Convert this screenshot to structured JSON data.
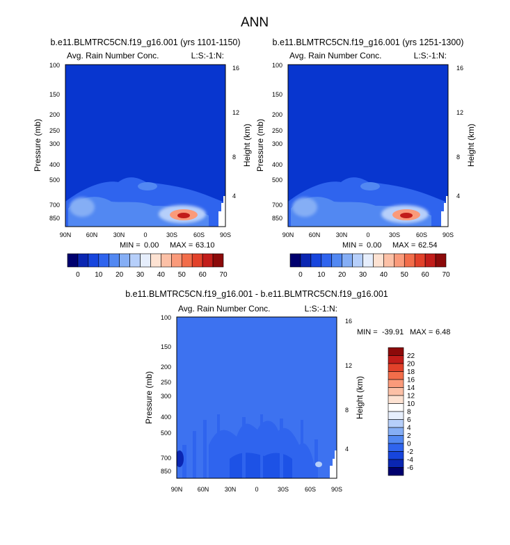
{
  "page_title": "ANN",
  "colors": {
    "field_background": "#0836cf",
    "diff_background": "#3d72f0"
  },
  "chart_data": [
    {
      "type": "heatmap",
      "title": "b.e11.BLMTRC5CN.f19_g16.001 (yrs 1101-1150)",
      "variable_label": "Avg. Rain Number Conc.",
      "corner_label": "L:S:-1:N:",
      "xlabel": "",
      "ylabel": "Pressure (mb)",
      "ylabel_right": "Height (km)",
      "x_ticks": [
        "90N",
        "60N",
        "30N",
        "0",
        "30S",
        "60S",
        "90S"
      ],
      "y_ticks": [
        "100",
        "150",
        "200",
        "250",
        "300",
        "400",
        "500",
        "700",
        "850"
      ],
      "y_right_ticks": [
        "16",
        "12",
        "8",
        "4"
      ],
      "y_scale": "log",
      "ylim": [
        1000,
        100
      ],
      "stats": {
        "min_label": "MIN =",
        "min": "0.00",
        "max_label": "MAX =",
        "max": "63.10"
      },
      "colorbar": {
        "orientation": "horizontal",
        "tick_labels": [
          "0",
          "10",
          "20",
          "30",
          "40",
          "50",
          "60",
          "70"
        ],
        "colors": [
          "#00006e",
          "#0a26b2",
          "#1745dd",
          "#2f64ee",
          "#5288f2",
          "#85aef5",
          "#b6cffa",
          "#e6eefc",
          "#fde2d2",
          "#fcc0a6",
          "#fa9a7a",
          "#f26d4a",
          "#e2412a",
          "#c21d1a",
          "#8c0a0a"
        ]
      },
      "features": [
        {
          "kind": "blob",
          "lat": 70,
          "p": 770,
          "level": 6
        },
        {
          "kind": "blob",
          "lat": 60,
          "p": 540,
          "level": 3
        },
        {
          "kind": "blob",
          "lat": -5,
          "p": 420,
          "level": 3
        },
        {
          "kind": "blob",
          "lat": -35,
          "p": 810,
          "level": 14
        }
      ]
    },
    {
      "type": "heatmap",
      "title": "b.e11.BLMTRC5CN.f19_g16.001 (yrs 1251-1300)",
      "variable_label": "Avg. Rain Number Conc.",
      "corner_label": "L:S:-1:N:",
      "xlabel": "",
      "ylabel": "Pressure (mb)",
      "ylabel_right": "Height (km)",
      "x_ticks": [
        "90N",
        "60N",
        "30N",
        "0",
        "30S",
        "60S",
        "90S"
      ],
      "y_ticks": [
        "100",
        "150",
        "200",
        "250",
        "300",
        "400",
        "500",
        "700",
        "850"
      ],
      "y_right_ticks": [
        "16",
        "12",
        "8",
        "4"
      ],
      "y_scale": "log",
      "ylim": [
        1000,
        100
      ],
      "stats": {
        "min_label": "MIN =",
        "min": "0.00",
        "max_label": "MAX =",
        "max": "62.54"
      },
      "colorbar": {
        "orientation": "horizontal",
        "tick_labels": [
          "0",
          "10",
          "20",
          "30",
          "40",
          "50",
          "60",
          "70"
        ],
        "colors": [
          "#00006e",
          "#0a26b2",
          "#1745dd",
          "#2f64ee",
          "#5288f2",
          "#85aef5",
          "#b6cffa",
          "#e6eefc",
          "#fde2d2",
          "#fcc0a6",
          "#fa9a7a",
          "#f26d4a",
          "#e2412a",
          "#c21d1a",
          "#8c0a0a"
        ]
      },
      "features": [
        {
          "kind": "blob",
          "lat": 70,
          "p": 770,
          "level": 6
        },
        {
          "kind": "blob",
          "lat": 60,
          "p": 540,
          "level": 3
        },
        {
          "kind": "blob",
          "lat": -5,
          "p": 420,
          "level": 3
        },
        {
          "kind": "blob",
          "lat": -35,
          "p": 810,
          "level": 14
        }
      ]
    },
    {
      "type": "heatmap",
      "title": "b.e11.BLMTRC5CN.f19_g16.001 - b.e11.BLMTRC5CN.f19_g16.001",
      "variable_label": "Avg. Rain Number Conc.",
      "corner_label": "L:S:-1:N:",
      "xlabel": "",
      "ylabel": "Pressure (mb)",
      "ylabel_right": "Height (km)",
      "x_ticks": [
        "90N",
        "60N",
        "30N",
        "0",
        "30S",
        "60S",
        "90S"
      ],
      "y_ticks": [
        "100",
        "150",
        "200",
        "250",
        "300",
        "400",
        "500",
        "700",
        "850"
      ],
      "y_right_ticks": [
        "16",
        "12",
        "8",
        "4"
      ],
      "y_scale": "log",
      "ylim": [
        1000,
        100
      ],
      "stats": {
        "min_label": "MIN =",
        "min": "-39.91",
        "max_label": "MAX =",
        "max": "6.48"
      },
      "colorbar": {
        "orientation": "vertical",
        "tick_labels": [
          "22",
          "20",
          "18",
          "16",
          "14",
          "12",
          "10",
          "8",
          "6",
          "4",
          "2",
          "0",
          "-2",
          "-4",
          "-6"
        ],
        "colors": [
          "#8c0a0a",
          "#c21d1a",
          "#e2412a",
          "#f26d4a",
          "#fa9a7a",
          "#fcc0a6",
          "#fde2d2",
          "#ffffff",
          "#e6eefc",
          "#b6cffa",
          "#85aef5",
          "#5288f2",
          "#2f64ee",
          "#1745dd",
          "#0a26b2",
          "#00006e"
        ]
      },
      "features": [
        {
          "kind": "blob",
          "lat": 10,
          "p": 750,
          "level": 12
        },
        {
          "kind": "blob",
          "lat": 80,
          "p": 780,
          "level": 14
        },
        {
          "kind": "blob",
          "lat": -75,
          "p": 800,
          "level": 7
        }
      ]
    }
  ]
}
